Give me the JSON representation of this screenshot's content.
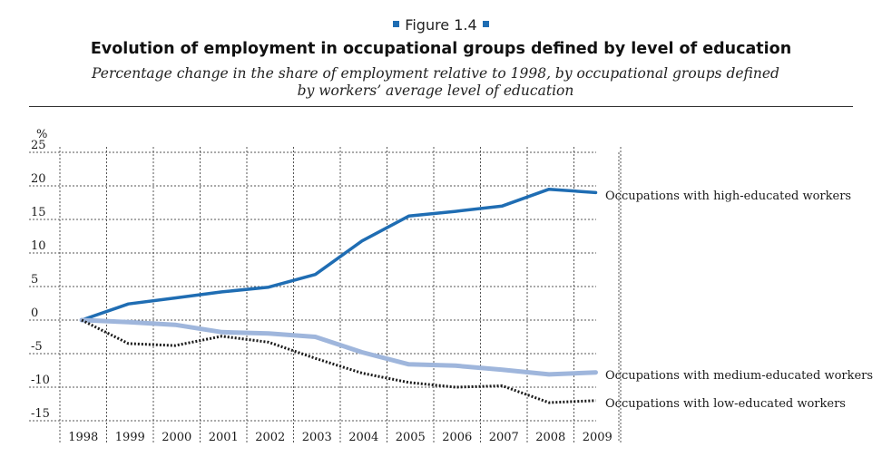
{
  "figure_label": "Figure 1.4",
  "title": "Evolution of employment in occupational groups defined by level of education",
  "subtitle": "Percentage change in the share of employment relative to 1998, by occupational groups defined by workers’ average level of education",
  "chart_data": {
    "type": "line",
    "ylabel": "%",
    "xlabel": "",
    "ylim": [
      -15,
      25
    ],
    "yticks": [
      -15,
      -10,
      -5,
      0,
      5,
      10,
      15,
      20,
      25
    ],
    "x": [
      "1998",
      "1999",
      "2000",
      "2001",
      "2002",
      "2003",
      "2004",
      "2005",
      "2006",
      "2007",
      "2008",
      "2009"
    ],
    "grid": true,
    "series": [
      {
        "name": "Occupations with high-educated workers",
        "values": [
          0,
          2.4,
          3.3,
          4.2,
          4.9,
          6.8,
          11.8,
          15.5,
          16.2,
          17.0,
          19.5,
          19.0
        ],
        "color": "#1f6db3",
        "style": "solid"
      },
      {
        "name": "Occupations with medium-educated workers",
        "values": [
          0,
          -0.3,
          -0.7,
          -1.8,
          -2.0,
          -2.5,
          -4.8,
          -6.6,
          -6.8,
          -7.4,
          -8.1,
          -7.8
        ],
        "color": "#9fb6dc",
        "style": "solid"
      },
      {
        "name": "Occupations with low-educated workers",
        "values": [
          0,
          -3.5,
          -3.8,
          -2.4,
          -3.3,
          -5.7,
          -7.9,
          -9.3,
          -10.0,
          -9.8,
          -12.3,
          -12.0
        ],
        "color": "#1a1a1a",
        "style": "dotted"
      }
    ]
  }
}
